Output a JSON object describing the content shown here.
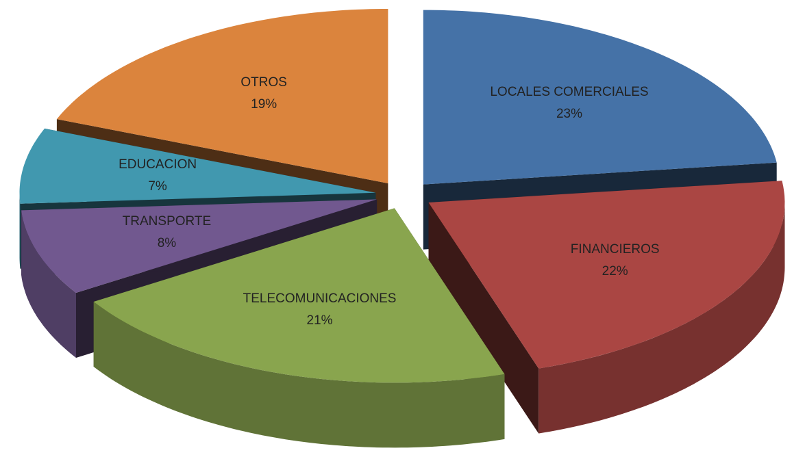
{
  "chart_data": {
    "type": "pie3d",
    "categories": [
      "LOCALES COMERCIALES",
      "FINANCIEROS",
      "TELECOMUNICACIONES",
      "TRANSPORTE",
      "EDUCACION",
      "OTROS"
    ],
    "values": [
      23,
      22,
      21,
      8,
      7,
      19
    ],
    "value_labels": [
      "23%",
      "22%",
      "21%",
      "8%",
      "7%",
      "19%"
    ],
    "colors": [
      "#4572a7",
      "#aa4643",
      "#89a54e",
      "#71588f",
      "#4198af",
      "#db843d"
    ]
  }
}
